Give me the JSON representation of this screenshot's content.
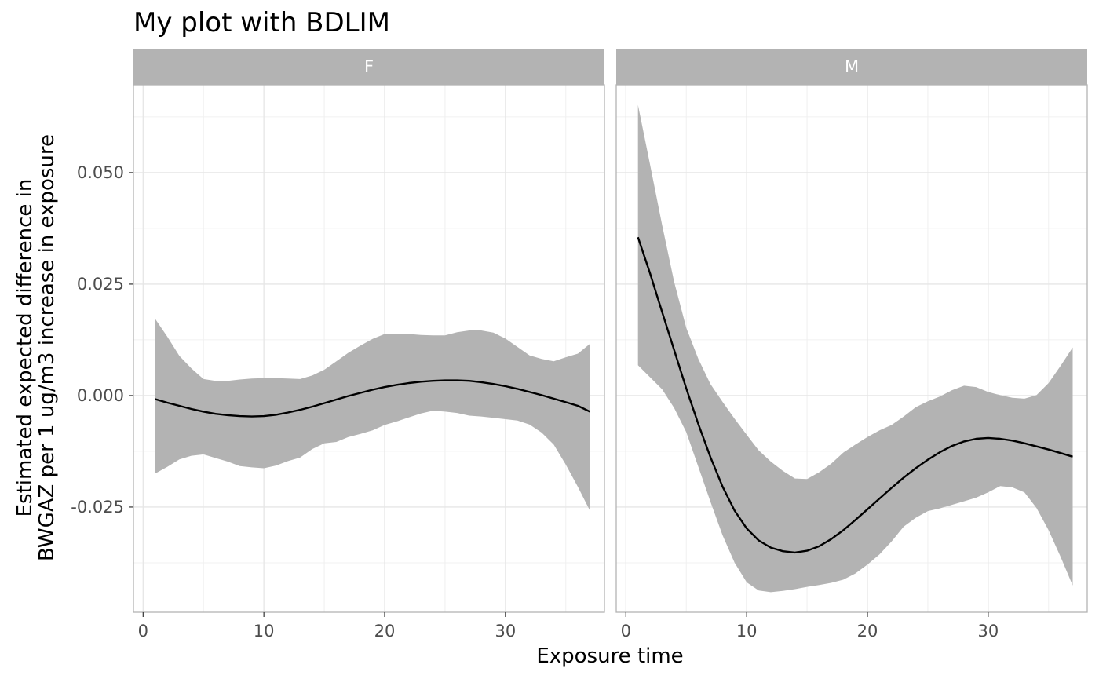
{
  "chart_data": {
    "type": "line",
    "title": "My plot with BDLIM",
    "xlabel": "Exposure time",
    "ylabel_lines": [
      "Estimated expected difference in",
      "BWGAZ per 1 ug/m3 increase in exposure"
    ],
    "xlim": [
      -0.8,
      38.2
    ],
    "ylim": [
      -0.0486,
      0.0697
    ],
    "x_ticks": [
      0,
      10,
      20,
      30
    ],
    "x_tick_labels": [
      "0",
      "10",
      "20",
      "30"
    ],
    "y_ticks": [
      0.05,
      0.025,
      0.0,
      -0.025
    ],
    "y_tick_labels": [
      "0.050",
      "0.025",
      "0.000",
      "-0.025"
    ],
    "grid": true,
    "colors": {
      "ribbon": "#b3b3b3",
      "line": "#000000",
      "strip": "#b3b3b3",
      "grid": "#e6e6e6",
      "panel_border": "#b3b3b3"
    },
    "panels": [
      {
        "label": "F",
        "x": [
          1,
          2,
          3,
          4,
          5,
          6,
          7,
          8,
          9,
          10,
          11,
          12,
          13,
          14,
          15,
          16,
          17,
          18,
          19,
          20,
          21,
          22,
          23,
          24,
          25,
          26,
          27,
          28,
          29,
          30,
          31,
          32,
          33,
          34,
          35,
          36,
          37
        ],
        "estimate": [
          -0.0008,
          -0.0016,
          -0.0023,
          -0.003,
          -0.0036,
          -0.0041,
          -0.0044,
          -0.0046,
          -0.0047,
          -0.0046,
          -0.0043,
          -0.0038,
          -0.0032,
          -0.0025,
          -0.0017,
          -0.0009,
          -0.0001,
          0.0006,
          0.0013,
          0.0019,
          0.0024,
          0.0028,
          0.0031,
          0.0033,
          0.0034,
          0.0034,
          0.0033,
          0.003,
          0.0026,
          0.0021,
          0.0015,
          0.0008,
          0.0001,
          -0.0007,
          -0.0015,
          -0.0023,
          -0.0036
        ],
        "lower": [
          -0.0175,
          -0.016,
          -0.0143,
          -0.0135,
          -0.0132,
          -0.014,
          -0.0148,
          -0.0158,
          -0.0161,
          -0.0163,
          -0.0157,
          -0.0147,
          -0.0139,
          -0.012,
          -0.0107,
          -0.0104,
          -0.0093,
          -0.0086,
          -0.0078,
          -0.0066,
          -0.0058,
          -0.0049,
          -0.004,
          -0.0034,
          -0.0036,
          -0.0039,
          -0.0045,
          -0.0047,
          -0.005,
          -0.0053,
          -0.0056,
          -0.0065,
          -0.0083,
          -0.011,
          -0.0155,
          -0.0205,
          -0.0258
        ],
        "upper": [
          0.0172,
          0.0132,
          0.0089,
          0.0061,
          0.0037,
          0.0033,
          0.0033,
          0.0036,
          0.0038,
          0.0039,
          0.0039,
          0.0038,
          0.0037,
          0.0045,
          0.0058,
          0.0077,
          0.0096,
          0.0112,
          0.0127,
          0.0138,
          0.0139,
          0.0138,
          0.0136,
          0.0135,
          0.0135,
          0.0142,
          0.0146,
          0.0146,
          0.0141,
          0.0128,
          0.0109,
          0.009,
          0.0082,
          0.0077,
          0.0086,
          0.0094,
          0.0116
        ]
      },
      {
        "label": "M",
        "x": [
          1,
          2,
          3,
          4,
          5,
          6,
          7,
          8,
          9,
          10,
          11,
          12,
          13,
          14,
          15,
          16,
          17,
          18,
          19,
          20,
          21,
          22,
          23,
          24,
          25,
          26,
          27,
          28,
          29,
          30,
          31,
          32,
          33,
          34,
          35,
          36,
          37
        ],
        "estimate": [
          0.0355,
          0.0274,
          0.0187,
          0.0102,
          0.0016,
          -0.0064,
          -0.0138,
          -0.0204,
          -0.0258,
          -0.0298,
          -0.0325,
          -0.0341,
          -0.0349,
          -0.0352,
          -0.0348,
          -0.0338,
          -0.0322,
          -0.0302,
          -0.0279,
          -0.0255,
          -0.0231,
          -0.0207,
          -0.0184,
          -0.0163,
          -0.0144,
          -0.0127,
          -0.0113,
          -0.0103,
          -0.0097,
          -0.0095,
          -0.0097,
          -0.0101,
          -0.0107,
          -0.0114,
          -0.0121,
          -0.0129,
          -0.0137
        ],
        "lower": [
          0.0068,
          0.0041,
          0.0014,
          -0.0028,
          -0.0082,
          -0.016,
          -0.0238,
          -0.0313,
          -0.0375,
          -0.0419,
          -0.0437,
          -0.0441,
          -0.0438,
          -0.0434,
          -0.0429,
          -0.0425,
          -0.042,
          -0.0413,
          -0.0399,
          -0.0379,
          -0.0356,
          -0.0327,
          -0.0294,
          -0.0274,
          -0.0259,
          -0.0253,
          -0.0245,
          -0.0237,
          -0.0229,
          -0.0217,
          -0.0203,
          -0.0206,
          -0.0217,
          -0.0252,
          -0.0302,
          -0.0362,
          -0.0426
        ],
        "upper": [
          0.0652,
          0.0518,
          0.0382,
          0.0255,
          0.0152,
          0.0082,
          0.0026,
          -0.0014,
          -0.0052,
          -0.0088,
          -0.0123,
          -0.0148,
          -0.0169,
          -0.0186,
          -0.0187,
          -0.0172,
          -0.0153,
          -0.0128,
          -0.011,
          -0.0093,
          -0.0078,
          -0.0066,
          -0.0047,
          -0.0026,
          -0.0013,
          -0.0002,
          0.0012,
          0.0022,
          0.0019,
          0.0008,
          0.0001,
          -0.0005,
          -0.0007,
          0.0001,
          0.0028,
          0.0067,
          0.0108
        ]
      }
    ]
  }
}
